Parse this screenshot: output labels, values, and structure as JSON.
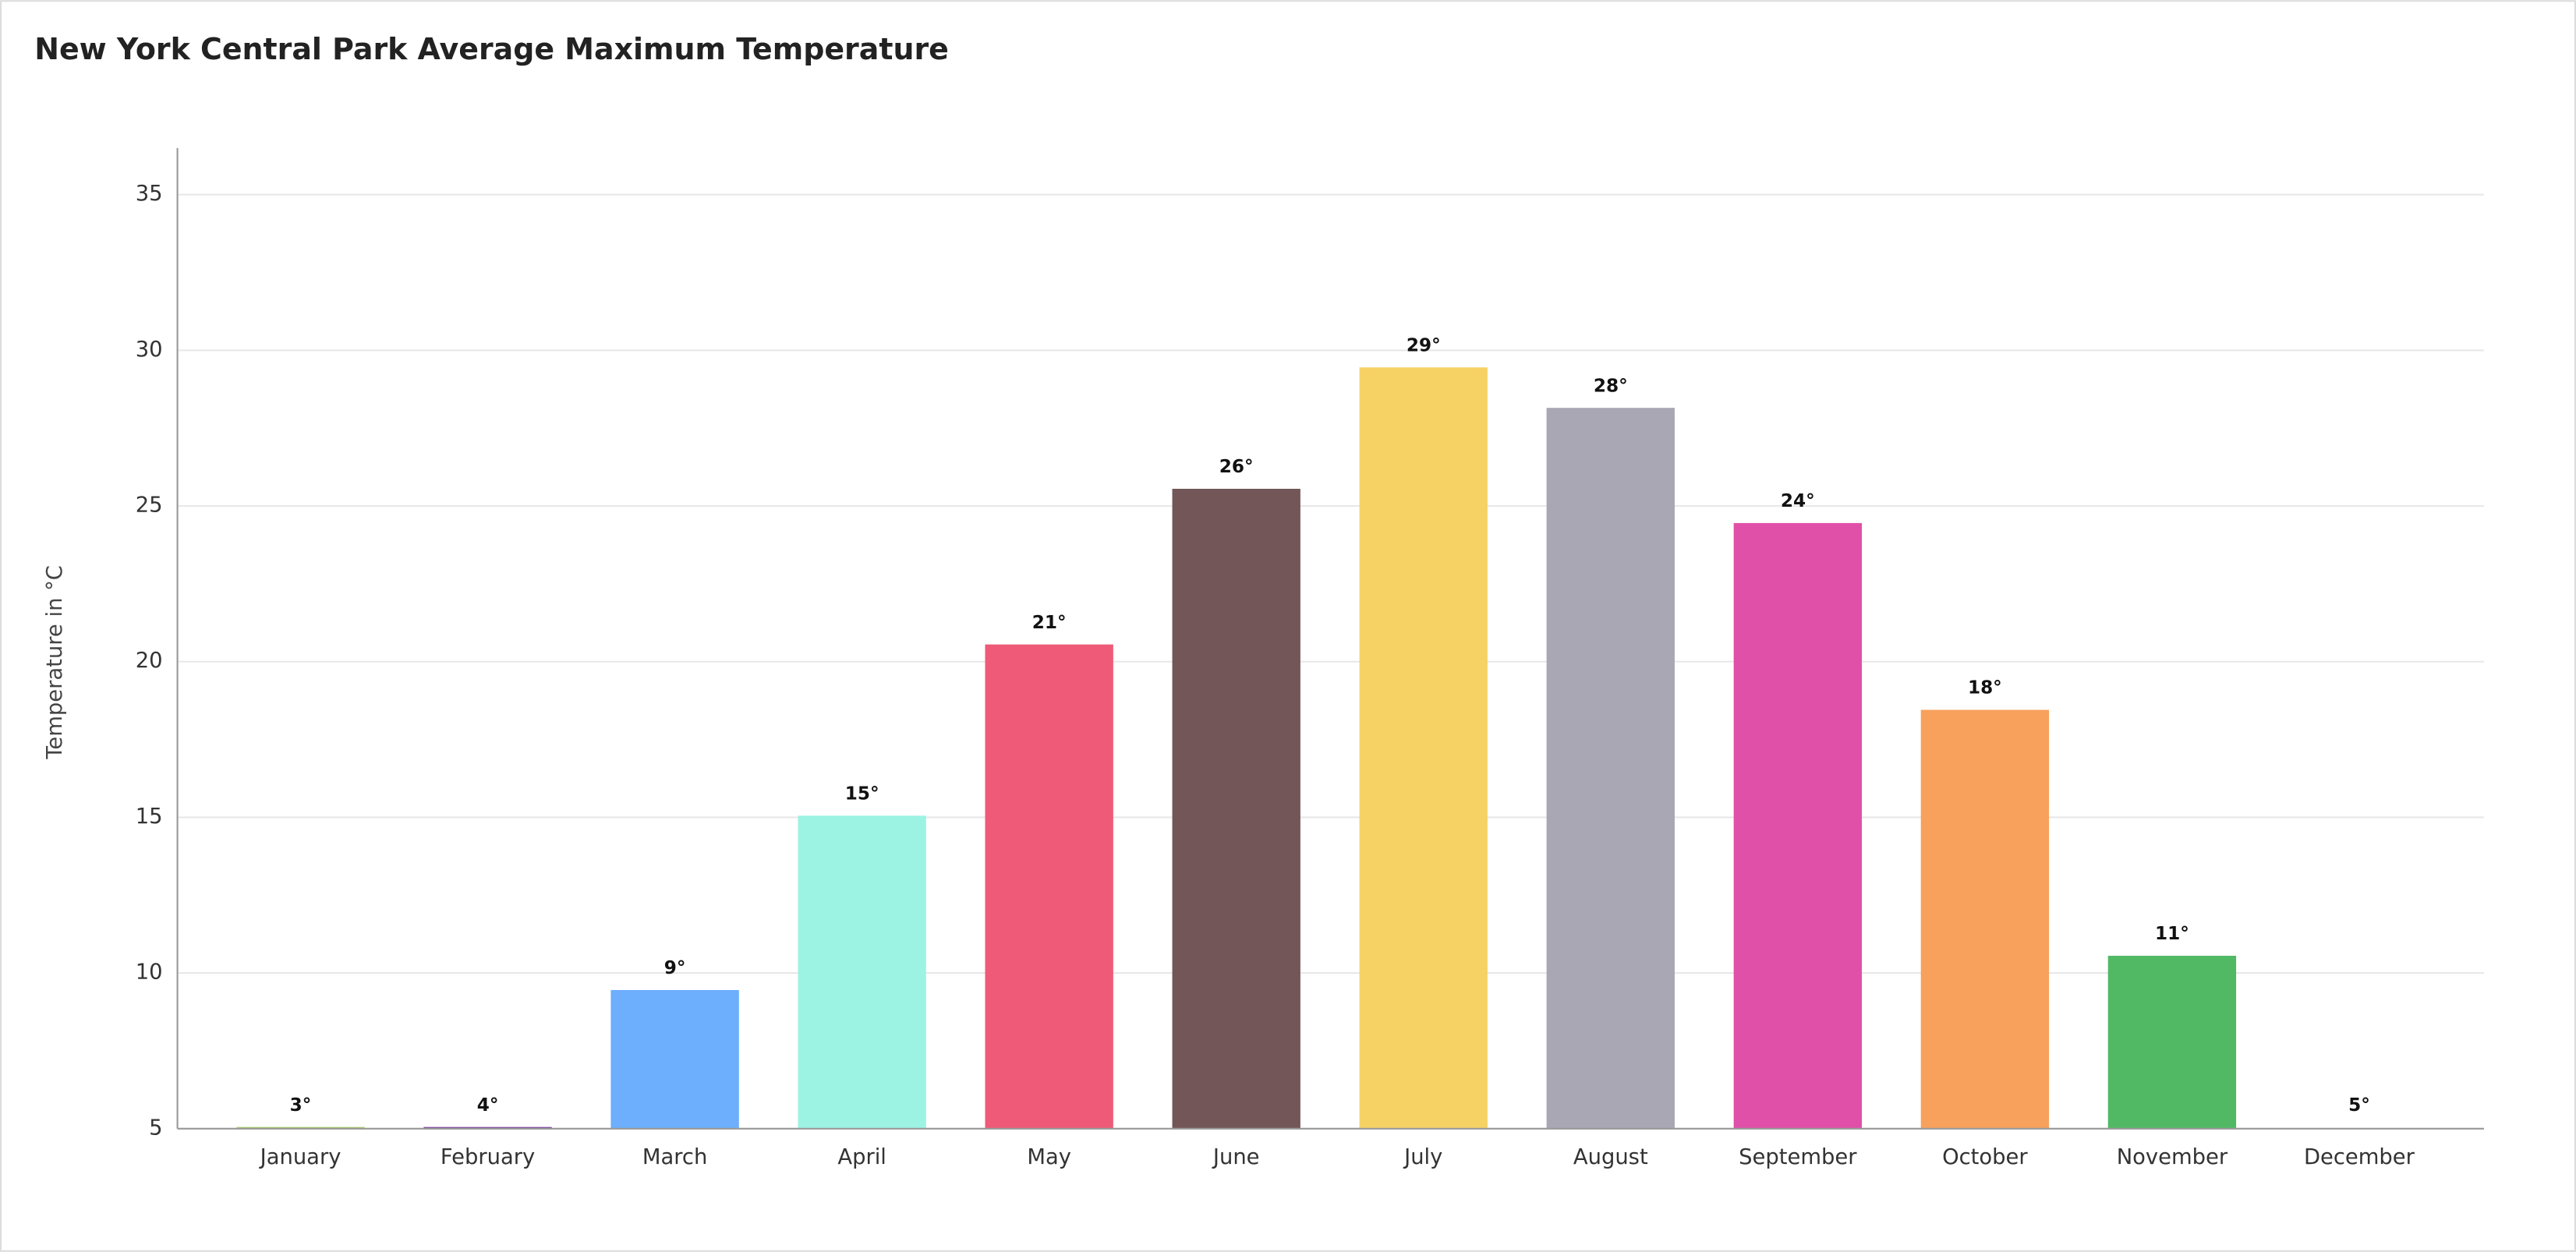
{
  "chart_data": {
    "type": "bar",
    "title": "New York Central Park Average Maximum Temperature",
    "y_label": "Temperature in °C",
    "categories": [
      "January",
      "February",
      "March",
      "April",
      "May",
      "June",
      "July",
      "August",
      "September",
      "October",
      "November",
      "December"
    ],
    "values": [
      3,
      4,
      9.4,
      15,
      20.5,
      25.5,
      29.4,
      28.1,
      24.4,
      18.4,
      10.5,
      5
    ],
    "value_labels": [
      "3°",
      "4°",
      "9°",
      "15°",
      "21°",
      "26°",
      "29°",
      "28°",
      "24°",
      "18°",
      "11°",
      "5°"
    ],
    "colors": [
      "#a6c96a",
      "#7b3fa0",
      "#6daefd",
      "#9df3e3",
      "#ee5a77",
      "#735657",
      "#f6d264",
      "#a9a7b4",
      "#e050a8",
      "#f7a15d",
      "#51b964",
      "#e0901f"
    ],
    "ylim": [
      5,
      36.5
    ],
    "yticks": [
      5,
      10,
      15,
      20,
      25,
      30,
      35
    ],
    "grid": true
  }
}
